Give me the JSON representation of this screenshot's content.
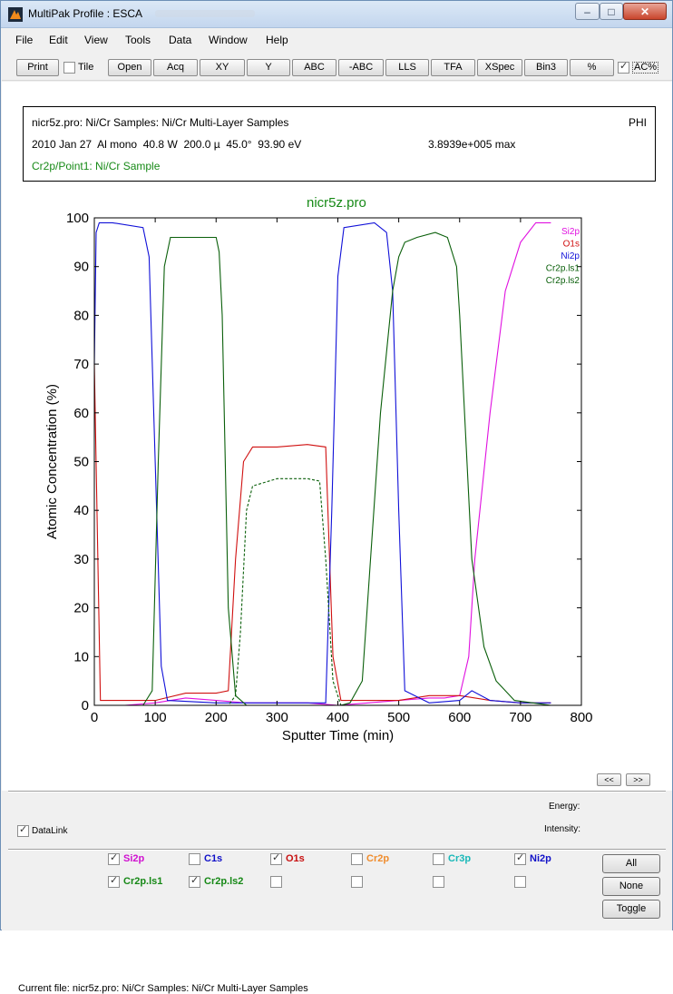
{
  "window": {
    "title": "MultiPak Profile : ESCA",
    "controls": {
      "minimize": "–",
      "maximize": "□",
      "close": "✕"
    }
  },
  "menu": [
    "File",
    "Edit",
    "View",
    "Tools",
    "Data",
    "Window",
    "Help"
  ],
  "toolbar": {
    "print": "Print",
    "tile": "Tile",
    "buttons": [
      "Open",
      "Acq",
      "XY",
      "Y",
      "ABC",
      "-ABC",
      "LLS",
      "TFA",
      "XSpec",
      "Bin3",
      "%"
    ],
    "ac_percent": "AC%",
    "ac_checked": true,
    "tile_checked": false
  },
  "info": {
    "line1": "nicr5z.pro: Ni/Cr Samples: Ni/Cr Multi-Layer Samples",
    "phi": "PHI",
    "line2": "2010 Jan 27  Al mono  40.8 W  200.0 µ  45.0°  93.90 eV",
    "max": "3.8939e+005 max",
    "line3": "Cr2p/Point1: Ni/Cr Sample",
    "line3_color": "#178a17"
  },
  "chart_data": {
    "type": "line",
    "title": "nicr5z.pro",
    "xlabel": "Sputter Time (min)",
    "ylabel": "Atomic Concentration (%)",
    "xlim": [
      0,
      800
    ],
    "ylim": [
      0,
      100
    ],
    "xticks": [
      0,
      100,
      200,
      300,
      400,
      500,
      600,
      700,
      800
    ],
    "yticks": [
      0,
      10,
      20,
      30,
      40,
      50,
      60,
      70,
      80,
      90,
      100
    ],
    "legend_position": "top-right",
    "series": [
      {
        "name": "Si2p",
        "color": "#e010e0",
        "dash": "",
        "x": [
          0,
          50,
          100,
          150,
          200,
          250,
          300,
          350,
          400,
          450,
          500,
          550,
          575,
          600,
          615,
          625,
          650,
          675,
          700,
          725,
          750
        ],
        "y": [
          0,
          0,
          0.5,
          1.5,
          1,
          0.5,
          0.5,
          0.5,
          0,
          0.5,
          1,
          1.5,
          1.5,
          2,
          10,
          30,
          60,
          85,
          95,
          99,
          99
        ]
      },
      {
        "name": "O1s",
        "color": "#d01010",
        "dash": "",
        "x": [
          0,
          10,
          50,
          100,
          150,
          200,
          220,
          232,
          245,
          260,
          300,
          350,
          380,
          392,
          405,
          450,
          500,
          550,
          600,
          650,
          700,
          750
        ],
        "y": [
          70,
          1,
          1,
          1,
          2.5,
          2.5,
          3,
          30,
          50,
          53,
          53,
          53.5,
          53,
          10,
          1,
          1,
          1,
          2,
          2,
          1,
          0.5,
          0.5
        ]
      },
      {
        "name": "Ni2p",
        "color": "#1010d8",
        "dash": "",
        "x": [
          0,
          3,
          8,
          30,
          80,
          90,
          100,
          110,
          120,
          200,
          300,
          380,
          390,
          400,
          410,
          460,
          480,
          490,
          500,
          510,
          550,
          600,
          620,
          650,
          700,
          750
        ],
        "y": [
          70,
          97,
          99,
          99,
          98,
          92,
          50,
          8,
          1,
          0.5,
          0.5,
          0.5,
          40,
          88,
          98,
          99,
          97,
          85,
          40,
          3,
          0.5,
          1,
          3,
          1,
          0.5,
          0.5
        ]
      },
      {
        "name": "Cr2p.ls1",
        "color": "#0a5f0a",
        "dash": "",
        "x": [
          0,
          30,
          80,
          95,
          105,
          115,
          125,
          150,
          200,
          205,
          210,
          220,
          232,
          250,
          300,
          380,
          392,
          405,
          420,
          440,
          470,
          490,
          500,
          510,
          530,
          560,
          580,
          595,
          600,
          610,
          620,
          640,
          660,
          690,
          720,
          750
        ],
        "y": [
          0,
          0,
          0,
          3,
          50,
          90,
          96,
          96,
          96,
          93,
          80,
          20,
          2,
          0,
          0,
          0,
          0,
          0,
          0.5,
          5,
          60,
          85,
          92,
          95,
          96,
          97,
          96,
          90,
          80,
          55,
          30,
          12,
          5,
          1,
          0.5,
          0
        ]
      },
      {
        "name": "Cr2p.ls2",
        "color": "#0a5f0a",
        "dash": "3,2",
        "x": [
          0,
          220,
          232,
          240,
          250,
          260,
          300,
          350,
          370,
          380,
          392,
          405,
          750
        ],
        "y": [
          0,
          0,
          2,
          15,
          40,
          45,
          46.5,
          46.5,
          46,
          30,
          5,
          0,
          0
        ]
      }
    ]
  },
  "nav": {
    "prev": "<<",
    "next": ">>"
  },
  "datalink": {
    "label": "DataLink",
    "checked": true
  },
  "energy_label": "Energy:",
  "intensity_label": "Intensity:",
  "elements_row1": [
    {
      "label": "Si2p",
      "color": "#d010d0",
      "checked": true
    },
    {
      "label": "C1s",
      "color": "#1010c8",
      "checked": false
    },
    {
      "label": "O1s",
      "color": "#c81010",
      "checked": true
    },
    {
      "label": "Cr2p",
      "color": "#f08c2c",
      "checked": false
    },
    {
      "label": "Cr3p",
      "color": "#18b8b8",
      "checked": false
    },
    {
      "label": "Ni2p",
      "color": "#1010c8",
      "checked": true
    }
  ],
  "elements_row2": [
    {
      "label": "Cr2p.ls1",
      "color": "#168816",
      "checked": true
    },
    {
      "label": "Cr2p.ls2",
      "color": "#168816",
      "checked": true
    },
    {
      "label": "",
      "color": "#000000",
      "checked": false
    },
    {
      "label": "",
      "color": "#000000",
      "checked": false
    },
    {
      "label": "",
      "color": "#000000",
      "checked": false
    },
    {
      "label": "",
      "color": "#000000",
      "checked": false
    }
  ],
  "side_buttons": [
    "All",
    "None",
    "Toggle"
  ],
  "status": "Current file: nicr5z.pro: Ni/Cr Samples: Ni/Cr Multi-Layer Samples"
}
